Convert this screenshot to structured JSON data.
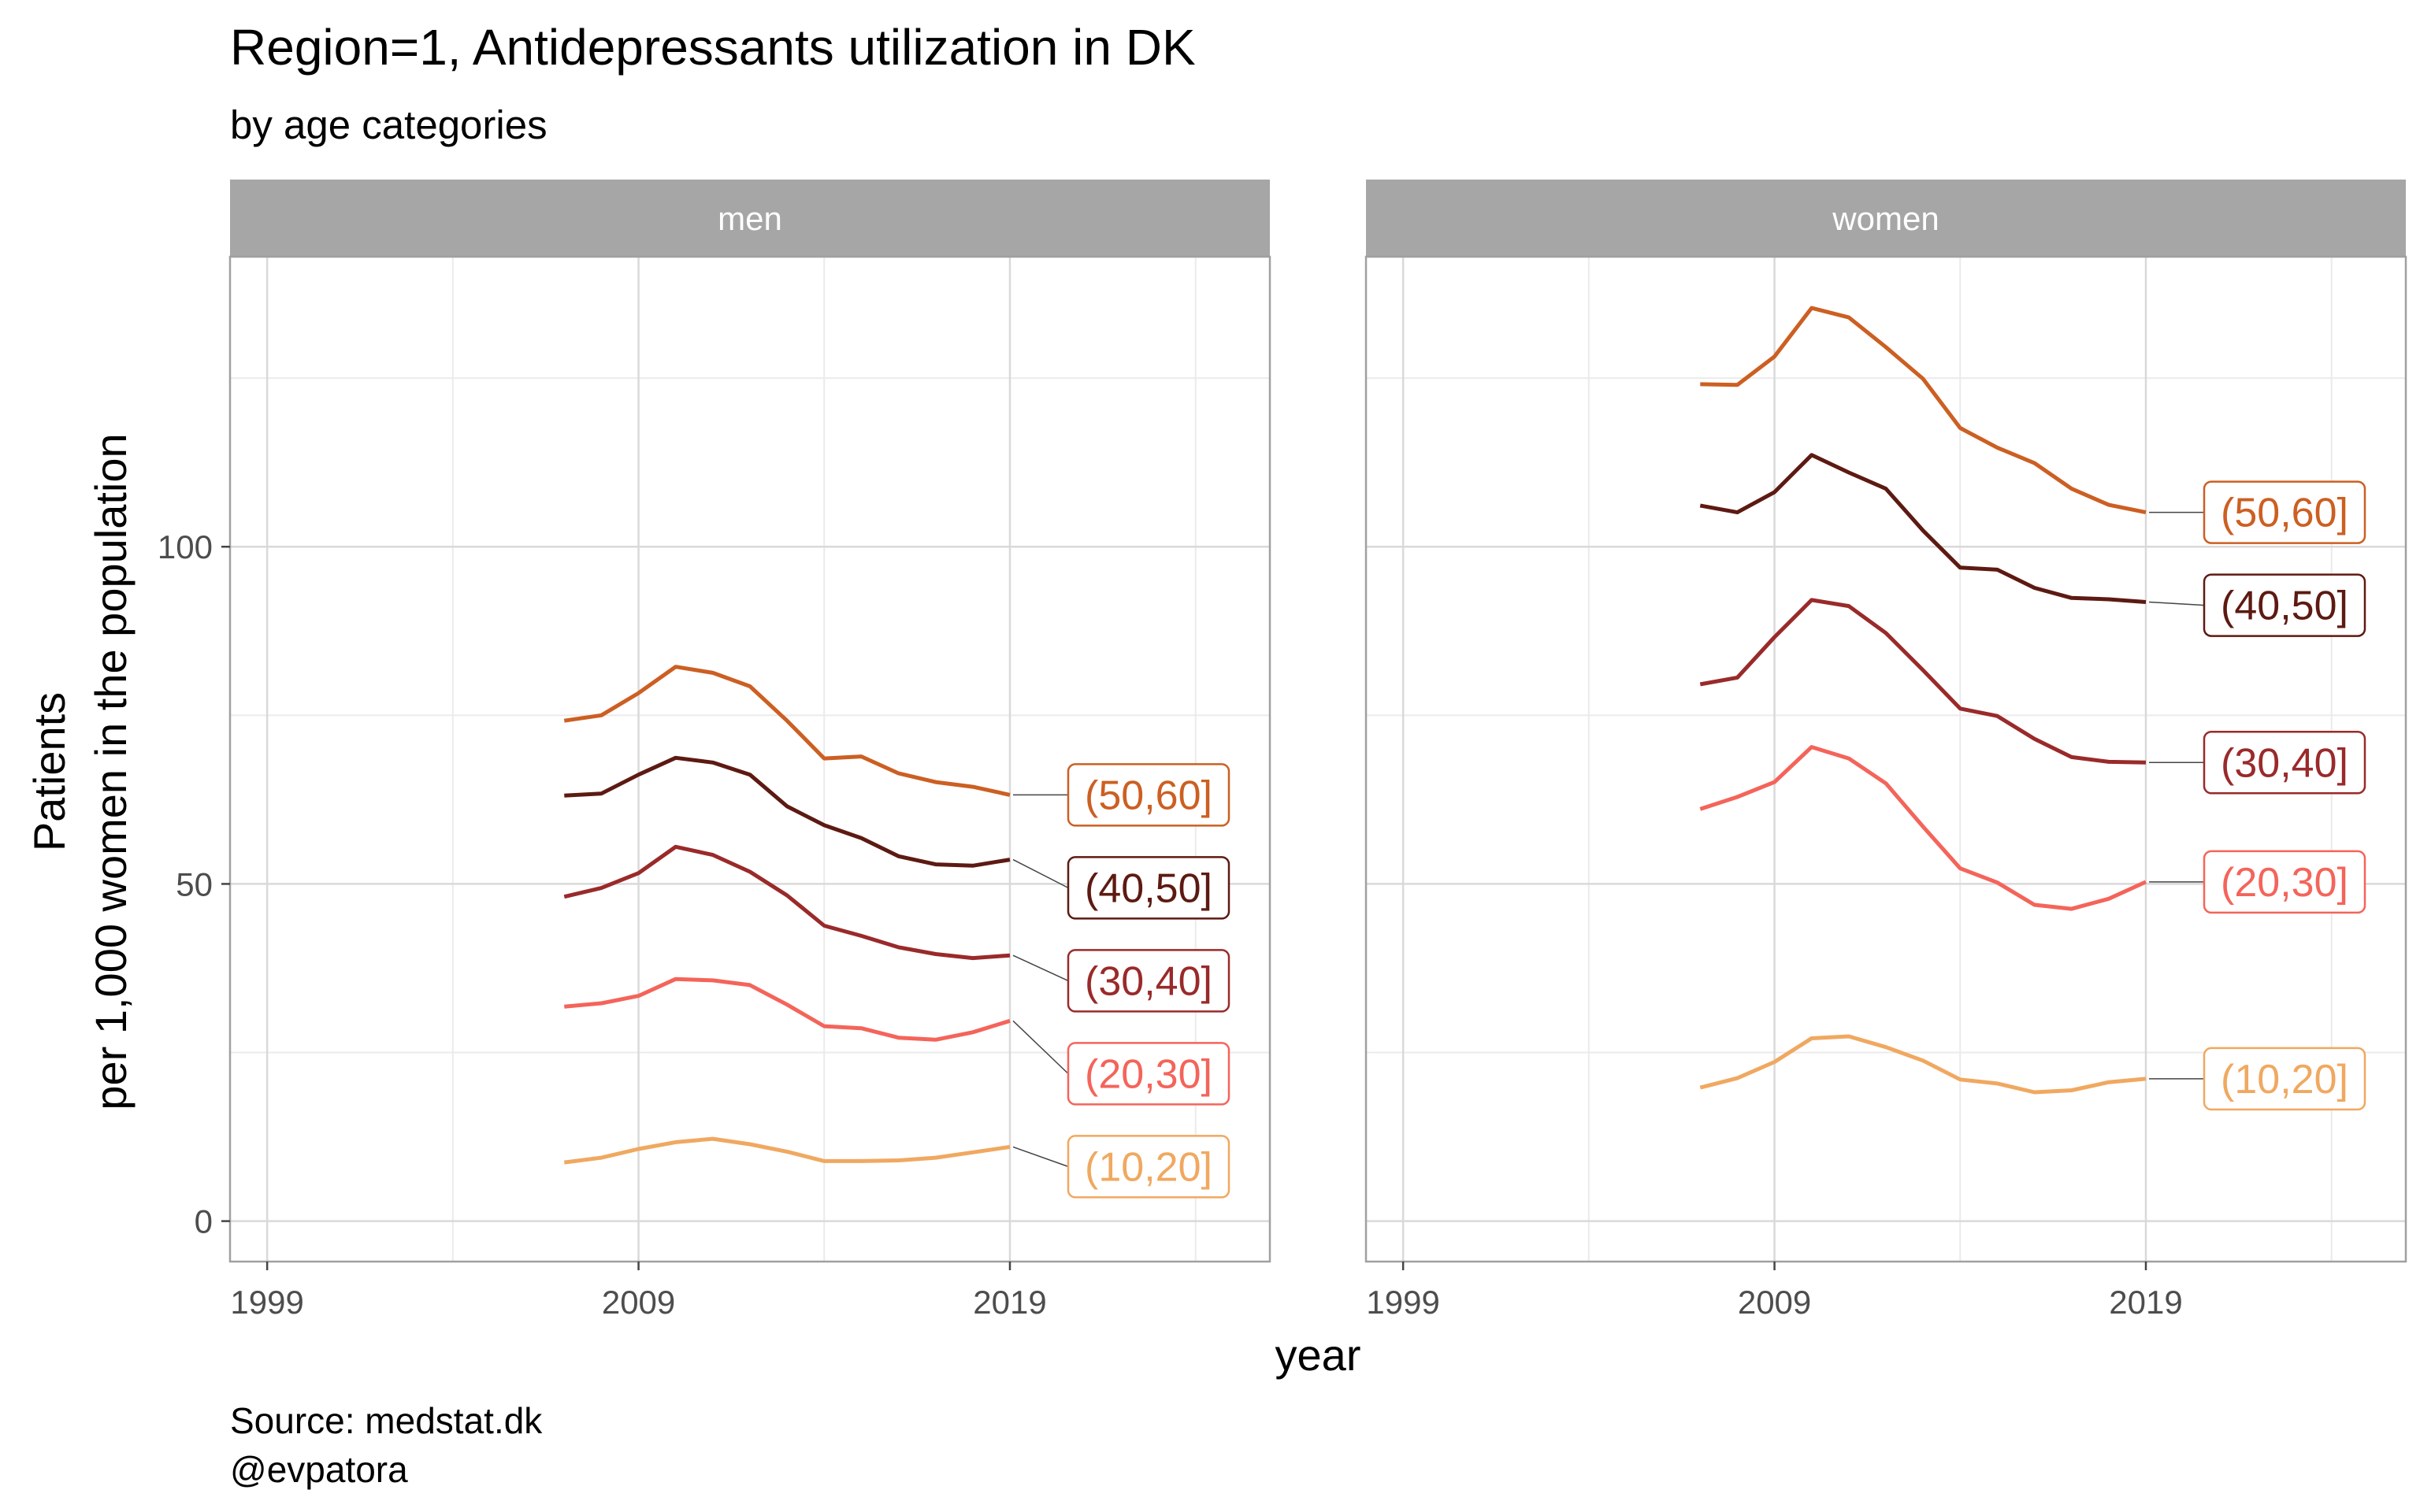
{
  "title": "Region=1, Antidepressants utilization in DK",
  "subtitle": "by age categories",
  "caption_line1": "Source: medstat.dk",
  "caption_line2": "@evpatora",
  "xlabel": "year",
  "ylabel_line1": "Patients",
  "ylabel_line2": "per 1,000 women in the population",
  "chart_data": {
    "type": "line",
    "title": "Region=1, Antidepressants utilization in DK",
    "subtitle": "by age categories",
    "xlabel": "year",
    "ylabel": "Patients per 1,000 women in the population",
    "xlim": [
      1998,
      2026
    ],
    "ylim": [
      -6,
      143
    ],
    "x_ticks": [
      1999,
      2009,
      2019
    ],
    "y_ticks": [
      0,
      50,
      100
    ],
    "grid": true,
    "x": [
      2007,
      2008,
      2009,
      2010,
      2011,
      2012,
      2013,
      2014,
      2015,
      2016,
      2017,
      2018,
      2019
    ],
    "panels": [
      {
        "name": "men",
        "series": [
          {
            "name": "(50,60]",
            "color": "#cc5f22",
            "values": [
              74.2,
              75.0,
              78.3,
              82.2,
              81.3,
              79.3,
              74.2,
              68.6,
              68.9,
              66.4,
              65.1,
              64.4,
              63.2
            ]
          },
          {
            "name": "(40,50]",
            "color": "#5d1a12",
            "values": [
              63.1,
              63.4,
              66.2,
              68.7,
              68.0,
              66.2,
              61.5,
              58.7,
              56.8,
              54.1,
              52.9,
              52.7,
              53.6
            ]
          },
          {
            "name": "(30,40]",
            "color": "#9a2a2a",
            "values": [
              48.1,
              49.4,
              51.6,
              55.5,
              54.3,
              51.8,
              48.3,
              43.8,
              42.3,
              40.6,
              39.6,
              39.0,
              39.4
            ]
          },
          {
            "name": "(20,30]",
            "color": "#f4645a",
            "values": [
              31.8,
              32.3,
              33.4,
              35.9,
              35.7,
              35.0,
              32.1,
              28.9,
              28.6,
              27.2,
              26.9,
              28.0,
              29.7
            ]
          },
          {
            "name": "(10,20]",
            "color": "#f0a860",
            "values": [
              8.7,
              9.4,
              10.7,
              11.7,
              12.2,
              11.4,
              10.3,
              8.9,
              8.9,
              9.0,
              9.4,
              10.2,
              11.0
            ]
          }
        ]
      },
      {
        "name": "women",
        "series": [
          {
            "name": "(50,60]",
            "color": "#cc5f22",
            "values": [
              124.1,
              124.0,
              128.2,
              135.4,
              134.0,
              129.6,
              124.9,
              117.6,
              114.7,
              112.4,
              108.6,
              106.2,
              105.1
            ]
          },
          {
            "name": "(40,50]",
            "color": "#5d1a12",
            "values": [
              106.1,
              105.1,
              108.1,
              113.6,
              111.0,
              108.6,
              102.4,
              96.9,
              96.6,
              93.9,
              92.4,
              92.2,
              91.8
            ]
          },
          {
            "name": "(30,40]",
            "color": "#9a2a2a",
            "values": [
              79.6,
              80.6,
              86.6,
              92.1,
              91.2,
              87.2,
              81.7,
              76.0,
              74.9,
              71.5,
              68.8,
              68.1,
              68.0
            ]
          },
          {
            "name": "(20,30]",
            "color": "#f4645a",
            "values": [
              61.1,
              62.9,
              65.1,
              70.3,
              68.6,
              64.9,
              58.5,
              52.3,
              50.2,
              46.9,
              46.3,
              47.8,
              50.3
            ]
          },
          {
            "name": "(10,20]",
            "color": "#f0a860",
            "values": [
              19.8,
              21.2,
              23.6,
              27.1,
              27.4,
              25.8,
              23.8,
              21.0,
              20.4,
              19.1,
              19.4,
              20.6,
              21.1
            ]
          }
        ]
      }
    ]
  }
}
